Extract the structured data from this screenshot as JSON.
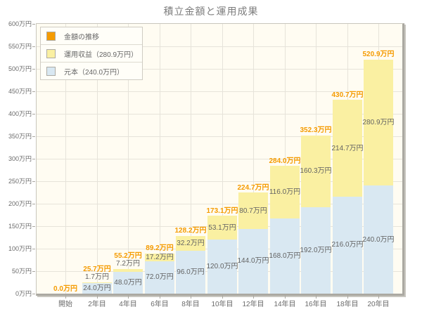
{
  "title": "積立金額と運用成果",
  "colors": {
    "orange": "#F59B00",
    "yellow": "#FAF0A2",
    "blue": "#D9E8F2",
    "plot_bg": "#FFFCF2",
    "grid": "#E6E3DA",
    "axis_text": "#6B6B6B",
    "label_text": "#636363",
    "title_text": "#7D7D7D"
  },
  "legend": {
    "items": [
      {
        "label": "金額の推移",
        "swatch": "orange"
      },
      {
        "label": "運用収益（280.9万円）",
        "swatch": "yellow"
      },
      {
        "label": "元本（240.0万円）",
        "swatch": "blue"
      }
    ]
  },
  "chart_data": {
    "type": "bar",
    "stacked": true,
    "title": "積立金額と運用成果",
    "unit": "万円",
    "categories": [
      "開始",
      "2年目",
      "4年目",
      "6年目",
      "8年目",
      "10年目",
      "12年目",
      "14年目",
      "16年目",
      "18年目",
      "20年目"
    ],
    "series": [
      {
        "name": "元本（240.0万円）",
        "color_key": "blue",
        "values": [
          0,
          24.0,
          48.0,
          72.0,
          96.0,
          120.0,
          144.0,
          168.0,
          192.0,
          216.0,
          240.0
        ]
      },
      {
        "name": "運用収益（280.9万円）",
        "color_key": "yellow",
        "values": [
          0,
          1.7,
          7.2,
          17.2,
          32.2,
          53.1,
          80.7,
          116.0,
          160.3,
          214.7,
          280.9
        ]
      }
    ],
    "totals": [
      0.0,
      25.7,
      55.2,
      89.2,
      128.2,
      173.1,
      224.7,
      284.0,
      352.3,
      430.7,
      520.9
    ],
    "ylim": [
      0,
      600
    ],
    "ytick_step": 50,
    "xlabel": "",
    "ylabel": "",
    "grid": true,
    "legend_position": "top-left"
  }
}
